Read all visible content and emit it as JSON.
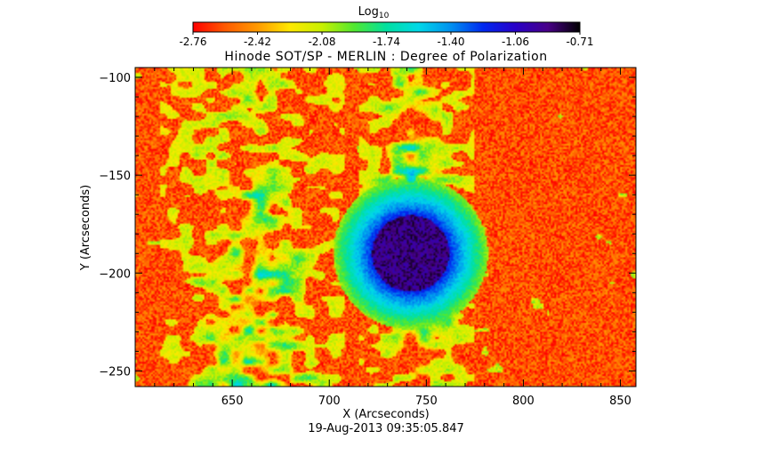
{
  "chart_data": {
    "type": "heatmap",
    "title": "Hinode SOT/SP - MERLIN : Degree of Polarization",
    "xlabel": "X (Arcseconds)",
    "ylabel": "Y (Arcseconds)",
    "footer": "19-Aug-2013 09:35:05.847",
    "xlim": [
      600,
      858
    ],
    "ylim": [
      -258,
      -95
    ],
    "xticks": [
      650,
      700,
      750,
      800,
      850
    ],
    "yticks": [
      -100,
      -150,
      -200,
      -250
    ],
    "colorbar": {
      "label": "Log",
      "label_subscript": "10",
      "range": [
        -2.76,
        -0.71
      ],
      "ticks": [
        "-2.76",
        "-2.42",
        "-2.08",
        "-1.74",
        "-1.40",
        "-1.06",
        "-0.71"
      ],
      "colormap": [
        "#ff0000",
        "#ff5a00",
        "#ff9a00",
        "#ffe800",
        "#c8f000",
        "#50e830",
        "#00e0a0",
        "#00d8e8",
        "#0090f0",
        "#0028f0",
        "#2800c8",
        "#480088",
        "#000000"
      ]
    },
    "features": {
      "background_level": -2.6,
      "sunspot": {
        "x": 742,
        "y": -190,
        "value": -0.9
      },
      "plage_bands": [
        {
          "x_from": 612,
          "x_to": 708,
          "level": -1.7
        },
        {
          "x_from": 715,
          "x_to": 775,
          "level": -1.8
        }
      ]
    }
  }
}
